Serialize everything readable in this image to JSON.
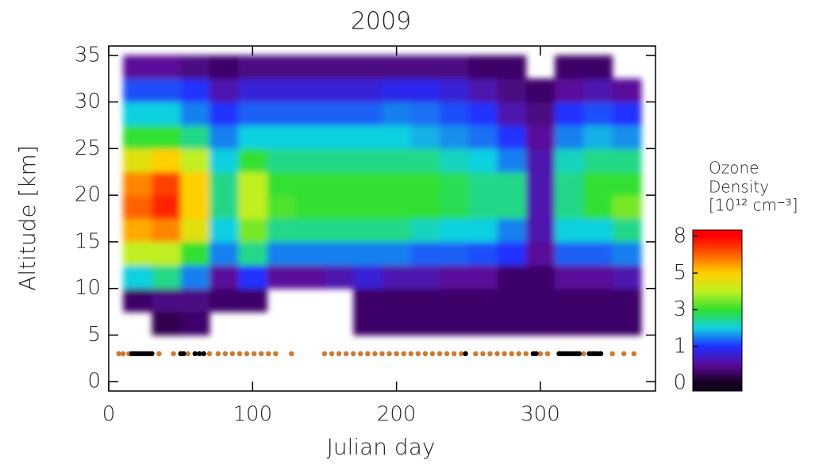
{
  "chart_data": {
    "type": "heatmap",
    "title": "2009",
    "x_label": "Julian day",
    "y_label": "Altitude [km]",
    "xlim": [
      0,
      380
    ],
    "ylim": [
      -1,
      36
    ],
    "xticks": [
      0,
      100,
      200,
      300
    ],
    "yticks": [
      0,
      5,
      10,
      15,
      20,
      25,
      30,
      35
    ],
    "x_edges": [
      10,
      30,
      50,
      70,
      90,
      110,
      130,
      150,
      170,
      190,
      210,
      230,
      250,
      270,
      290,
      310,
      330,
      350,
      370
    ],
    "y_edges": [
      5,
      7.5,
      10,
      12.5,
      15,
      17.5,
      20,
      22.5,
      25,
      27.5,
      30,
      32.5,
      35
    ],
    "z": [
      [
        null,
        0.2,
        0.3,
        null,
        null,
        null,
        null,
        null,
        0.3,
        0.3,
        0.3,
        0.3,
        0.3,
        0.3,
        0.3,
        0.3,
        0.3,
        0.3
      ],
      [
        0.3,
        0.4,
        0.4,
        0.3,
        0.3,
        null,
        null,
        null,
        0.3,
        0.3,
        0.3,
        0.3,
        0.3,
        0.3,
        0.3,
        0.3,
        0.3,
        0.3
      ],
      [
        2,
        2.5,
        1.5,
        0.5,
        1,
        0.5,
        0.5,
        0.6,
        0.8,
        0.6,
        0.6,
        0.5,
        0.5,
        0.3,
        0.3,
        0.5,
        0.5,
        0.6
      ],
      [
        4,
        4,
        3,
        1.5,
        2.5,
        1.5,
        1.5,
        1.5,
        1.5,
        1.5,
        1.3,
        1.3,
        1.2,
        1,
        0.5,
        1.3,
        1.3,
        1.5
      ],
      [
        5.5,
        6,
        4.5,
        2,
        3.5,
        2.5,
        2.5,
        2.5,
        2.5,
        2.5,
        2.2,
        2,
        2,
        1.5,
        0.6,
        2,
        2,
        2.5
      ],
      [
        6.5,
        7.5,
        5,
        2.5,
        4,
        3.2,
        3,
        3,
        3,
        3,
        3,
        2.8,
        2.5,
        2.5,
        0.6,
        2.5,
        3,
        3.5
      ],
      [
        6,
        7,
        5,
        2.5,
        4,
        3,
        3,
        3,
        3,
        3,
        3,
        2.8,
        2.5,
        2.5,
        0.6,
        2.5,
        3,
        3
      ],
      [
        4.5,
        5,
        4,
        2,
        3,
        2.5,
        2.5,
        2.5,
        2.5,
        2.5,
        2.5,
        2.2,
        2,
        1.5,
        0.6,
        2.2,
        2.5,
        2.5
      ],
      [
        3,
        3,
        2.5,
        1.5,
        2,
        2,
        2,
        2,
        2,
        2,
        1.8,
        1.6,
        1.4,
        1,
        0.5,
        1.5,
        1.8,
        1.6
      ],
      [
        2,
        2,
        1.5,
        1,
        1.3,
        1.3,
        1.3,
        1.3,
        1.3,
        1.5,
        1.4,
        1.2,
        1,
        0.6,
        0.4,
        1,
        1.2,
        1
      ],
      [
        1.2,
        1.2,
        1,
        0.6,
        0.8,
        0.8,
        0.8,
        0.8,
        0.8,
        0.9,
        0.9,
        0.8,
        0.6,
        0.4,
        0.3,
        0.5,
        0.6,
        0.5
      ],
      [
        0.5,
        0.5,
        0.4,
        0.3,
        0.4,
        0.4,
        0.4,
        0.4,
        0.4,
        0.4,
        0.4,
        0.4,
        0.3,
        0.3,
        null,
        0.3,
        0.3,
        null
      ]
    ],
    "colorbar_label": [
      "Ozone",
      "Density",
      "[10¹² cm⁻³]"
    ],
    "cticks": [
      0,
      1,
      3,
      5,
      8
    ],
    "colorscale": {
      "values": [
        0,
        0.5,
        1,
        2,
        3,
        4,
        5,
        6.5,
        8
      ],
      "colors": [
        "#14001e",
        "#5a0a9a",
        "#2030ff",
        "#10d0e0",
        "#30e030",
        "#c0f020",
        "#ffd000",
        "#ff6000",
        "#ff0000"
      ]
    },
    "series": [
      {
        "color": "#d2782d",
        "x": [
          7,
          10,
          14,
          35,
          45,
          55,
          70,
          76,
          81,
          86,
          91,
          96,
          101,
          106,
          111,
          116,
          127,
          150,
          155,
          160,
          165,
          170,
          175,
          180,
          185,
          190,
          195,
          200,
          205,
          210,
          215,
          220,
          225,
          230,
          235,
          240,
          245,
          255,
          260,
          265,
          270,
          275,
          280,
          285,
          290,
          300,
          305,
          330,
          350,
          358,
          365
        ],
        "values": [
          3,
          3,
          3,
          3,
          3,
          3,
          3,
          3,
          3,
          3,
          3,
          3,
          3,
          3,
          3,
          3,
          3,
          3,
          3,
          3,
          3,
          3,
          3,
          3,
          3,
          3,
          3,
          3,
          3,
          3,
          3,
          3,
          3,
          3,
          3,
          3,
          3,
          3,
          3,
          3,
          3,
          3,
          3,
          3,
          3,
          3,
          3,
          3,
          3,
          3,
          3
        ]
      },
      {
        "color": "#000000",
        "x": [
          16,
          18,
          20,
          22,
          24,
          26,
          28,
          30,
          50,
          52,
          60,
          63,
          66,
          248,
          295,
          297,
          313,
          315,
          317,
          319,
          321,
          323,
          325,
          327,
          334,
          336,
          338,
          340,
          342
        ],
        "values": [
          3,
          3,
          3,
          3,
          3,
          3,
          3,
          3,
          3,
          3,
          3,
          3,
          3,
          3,
          3,
          3,
          3,
          3,
          3,
          3,
          3,
          3,
          3,
          3,
          3,
          3,
          3,
          3,
          3
        ]
      }
    ]
  }
}
